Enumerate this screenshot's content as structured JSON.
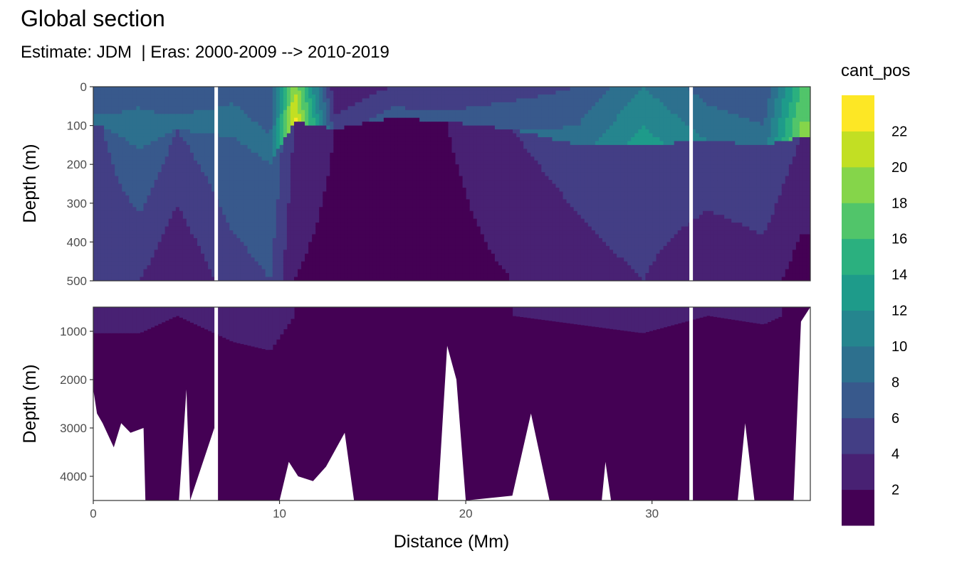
{
  "chart_data": {
    "type": "heatmap",
    "title": "Global section",
    "subtitle": "Estimate: JDM  | Eras: 2000-2009 --> 2010-2019",
    "xlabel": "Distance (Mm)",
    "x_ticks": [
      0,
      10,
      20,
      30
    ],
    "xlim": [
      0,
      38.5
    ],
    "panels": [
      {
        "name": "upper",
        "ylabel": "Depth (m)",
        "ylim": [
          0,
          500
        ],
        "y_ticks": [
          0,
          100,
          200,
          300,
          400,
          500
        ],
        "reversed": true
      },
      {
        "name": "lower",
        "ylabel": "Depth (m)",
        "ylim": [
          500,
          4500
        ],
        "y_ticks": [
          1000,
          2000,
          3000,
          4000
        ],
        "reversed": true
      }
    ],
    "colorbar": {
      "title": "cant_pos",
      "tick_labels": [
        "2",
        "4",
        "6",
        "8",
        "10",
        "12",
        "14",
        "16",
        "18",
        "20",
        "22"
      ],
      "levels": [
        0,
        2,
        4,
        6,
        8,
        10,
        12,
        14,
        16,
        18,
        20,
        22,
        24
      ],
      "colors": [
        "#440154",
        "#482173",
        "#433E85",
        "#38598C",
        "#2D708E",
        "#25858E",
        "#1E9B8A",
        "#2BB07F",
        "#51C56A",
        "#85D54A",
        "#C2DF23",
        "#FDE725"
      ]
    },
    "section_breaks_x": [
      6.6,
      32.1
    ],
    "upper_profile": [
      {
        "x": 0.5,
        "surface": 8,
        "thermo": 100,
        "deep": 6,
        "bottom": 4
      },
      {
        "x": 2.5,
        "surface": 9,
        "thermo": 160,
        "deep": 8,
        "bottom": 4
      },
      {
        "x": 4.5,
        "surface": 8,
        "thermo": 110,
        "deep": 6,
        "bottom": 2
      },
      {
        "x": 7.5,
        "surface": 9,
        "thermo": 130,
        "deep": 8,
        "bottom": 5
      },
      {
        "x": 9.5,
        "surface": 8,
        "thermo": 200,
        "deep": 8,
        "bottom": 6
      },
      {
        "x": 10.8,
        "surface": 22,
        "thermo": 90,
        "deep": 4,
        "bottom": 2
      },
      {
        "x": 13,
        "surface": 4,
        "thermo": 110,
        "deep": 2,
        "bottom": 1
      },
      {
        "x": 16,
        "surface": 6,
        "thermo": 80,
        "deep": 2,
        "bottom": 1
      },
      {
        "x": 19,
        "surface": 6,
        "thermo": 90,
        "deep": 2,
        "bottom": 1
      },
      {
        "x": 22.5,
        "surface": 7,
        "thermo": 110,
        "deep": 4,
        "bottom": 2
      },
      {
        "x": 26,
        "surface": 8,
        "thermo": 150,
        "deep": 5,
        "bottom": 3
      },
      {
        "x": 29.5,
        "surface": 12,
        "thermo": 150,
        "deep": 6,
        "bottom": 4
      },
      {
        "x": 33,
        "surface": 9,
        "thermo": 140,
        "deep": 6,
        "bottom": 2
      },
      {
        "x": 36,
        "surface": 8,
        "thermo": 150,
        "deep": 6,
        "bottom": 3
      },
      {
        "x": 38,
        "surface": 18,
        "thermo": 130,
        "deep": 4,
        "bottom": 1
      }
    ],
    "seafloor_depth": [
      {
        "x": 0,
        "depth": 2200
      },
      {
        "x": 0.2,
        "depth": 2700
      },
      {
        "x": 0.5,
        "depth": 2900
      },
      {
        "x": 1.1,
        "depth": 3400
      },
      {
        "x": 1.5,
        "depth": 2900
      },
      {
        "x": 2.0,
        "depth": 3100
      },
      {
        "x": 2.7,
        "depth": 3000
      },
      {
        "x": 2.8,
        "depth": 4500
      },
      {
        "x": 4.6,
        "depth": 4500
      },
      {
        "x": 4.8,
        "depth": 3400
      },
      {
        "x": 5.0,
        "depth": 2200
      },
      {
        "x": 5.2,
        "depth": 4500
      },
      {
        "x": 6.5,
        "depth": 3000
      },
      {
        "x": 6.6,
        "depth": 4500
      },
      {
        "x": 10.0,
        "depth": 4500
      },
      {
        "x": 10.5,
        "depth": 3700
      },
      {
        "x": 11.0,
        "depth": 4000
      },
      {
        "x": 11.8,
        "depth": 4100
      },
      {
        "x": 12.5,
        "depth": 3800
      },
      {
        "x": 13.5,
        "depth": 3100
      },
      {
        "x": 14.0,
        "depth": 4500
      },
      {
        "x": 18.5,
        "depth": 4500
      },
      {
        "x": 19.0,
        "depth": 1300
      },
      {
        "x": 19.5,
        "depth": 2000
      },
      {
        "x": 20.0,
        "depth": 4500
      },
      {
        "x": 22.5,
        "depth": 4400
      },
      {
        "x": 23.5,
        "depth": 2700
      },
      {
        "x": 24.5,
        "depth": 4500
      },
      {
        "x": 27.3,
        "depth": 4500
      },
      {
        "x": 27.5,
        "depth": 3700
      },
      {
        "x": 27.8,
        "depth": 4500
      },
      {
        "x": 34.6,
        "depth": 4500
      },
      {
        "x": 35.0,
        "depth": 2900
      },
      {
        "x": 35.5,
        "depth": 4500
      },
      {
        "x": 37.6,
        "depth": 4500
      },
      {
        "x": 38.0,
        "depth": 800
      },
      {
        "x": 38.5,
        "depth": 500
      }
    ]
  }
}
